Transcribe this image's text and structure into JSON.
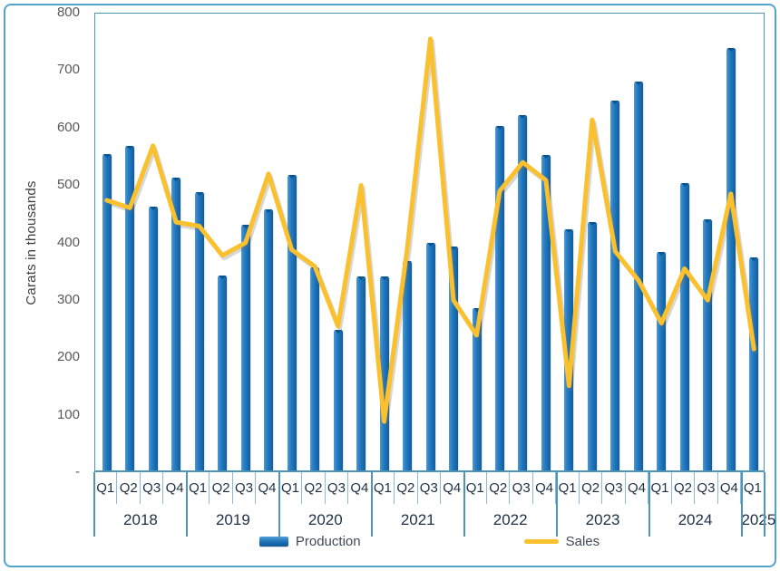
{
  "y_axis": {
    "title": "Carats in thousands",
    "ticks": [
      "800",
      "700",
      "600",
      "500",
      "400",
      "300",
      "200",
      "100",
      "-"
    ]
  },
  "colors": {
    "bar": "#1B6FB4",
    "bar_cap": "#0A5391",
    "line": "#FBC02D",
    "line_shadow": "rgba(110,110,110,0.28)",
    "frame_border": "#55A4C8",
    "plot_border": "#4E95B8",
    "quarter_tick": "#8BBBD6",
    "axis_text": "#1E3147",
    "ytick_text": "#595959"
  },
  "chart_data": {
    "type": "bar+line combo",
    "title": "",
    "ylabel": "Carats in thousands",
    "xlabel": "",
    "ylim": [
      0,
      800
    ],
    "grid": false,
    "legend_position": "bottom",
    "x_quarter_labels": [
      "Q1",
      "Q2",
      "Q3",
      "Q4",
      "Q1",
      "Q2",
      "Q3",
      "Q4",
      "Q1",
      "Q2",
      "Q3",
      "Q4",
      "Q1",
      "Q2",
      "Q3",
      "Q4",
      "Q1",
      "Q2",
      "Q3",
      "Q4",
      "Q1",
      "Q2",
      "Q3",
      "Q4",
      "Q1",
      "Q2",
      "Q3",
      "Q4",
      "Q1"
    ],
    "x_year_groups": [
      {
        "label": "2018",
        "quarters": 4
      },
      {
        "label": "2019",
        "quarters": 4
      },
      {
        "label": "2020",
        "quarters": 4
      },
      {
        "label": "2021",
        "quarters": 4
      },
      {
        "label": "2022",
        "quarters": 4
      },
      {
        "label": "2023",
        "quarters": 4
      },
      {
        "label": "2024",
        "quarters": 4
      },
      {
        "label": "2025",
        "quarters": 1
      }
    ],
    "series": [
      {
        "name": "Production",
        "type": "bar",
        "color": "#1B6FB4",
        "values": [
          550,
          565,
          460,
          510,
          485,
          340,
          428,
          455,
          515,
          353,
          245,
          337,
          337,
          364,
          396,
          390,
          282,
          600,
          618,
          549,
          420,
          432,
          644,
          677,
          380,
          501,
          437,
          736,
          371
        ]
      },
      {
        "name": "Sales",
        "type": "line",
        "color": "#FBC02D",
        "values": [
          475,
          462,
          570,
          437,
          430,
          379,
          401,
          521,
          389,
          360,
          256,
          501,
          90,
          391,
          756,
          301,
          240,
          491,
          541,
          510,
          152,
          615,
          386,
          336,
          261,
          356,
          301,
          486,
          216
        ]
      }
    ]
  }
}
